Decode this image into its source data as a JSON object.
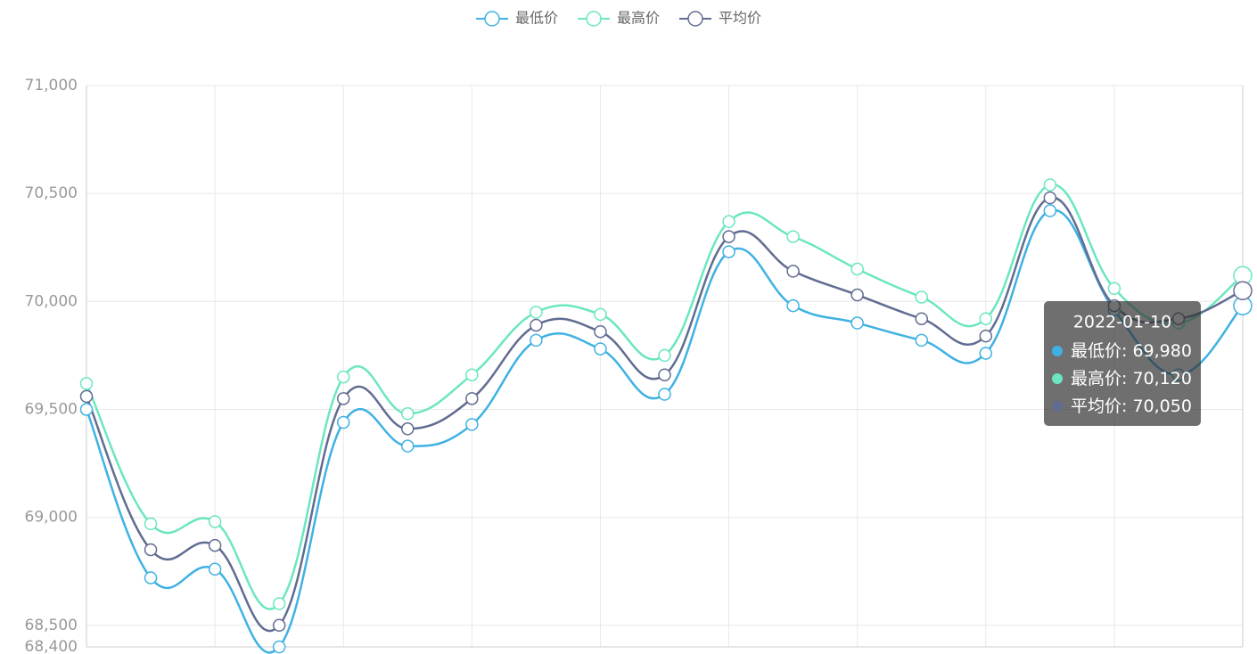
{
  "chart_data": {
    "type": "line",
    "categories": [
      null,
      null,
      null,
      null,
      null,
      null,
      null,
      null,
      null,
      null,
      null,
      null,
      null,
      null,
      null,
      null,
      null,
      null,
      "2022-01-10"
    ],
    "series": [
      {
        "name": "最低价",
        "color": "#3fb1e3",
        "values": [
          69500,
          68720,
          68760,
          68400,
          69440,
          69330,
          69430,
          69820,
          69780,
          69570,
          70230,
          69980,
          69900,
          69820,
          69760,
          70420,
          69960,
          69660,
          69980
        ]
      },
      {
        "name": "最高价",
        "color": "#6be6c1",
        "values": [
          69620,
          68970,
          68980,
          68600,
          69650,
          69480,
          69660,
          69950,
          69940,
          69750,
          70370,
          70300,
          70150,
          70020,
          69920,
          70540,
          70060,
          69900,
          70120
        ]
      },
      {
        "name": "平均价",
        "color": "#626c91",
        "values": [
          69560,
          68850,
          68870,
          68500,
          69550,
          69410,
          69550,
          69890,
          69860,
          69660,
          70300,
          70140,
          70030,
          69920,
          69840,
          70480,
          69980,
          69920,
          70050
        ]
      }
    ],
    "ylim": [
      68400,
      71000
    ],
    "yticks": [
      {
        "value": 68400,
        "label": "68,400"
      },
      {
        "value": 68500,
        "label": "68,500"
      },
      {
        "value": 69000,
        "label": "69,000"
      },
      {
        "value": 69500,
        "label": "69,500"
      },
      {
        "value": 70000,
        "label": "70,000"
      },
      {
        "value": 70500,
        "label": "70,500"
      },
      {
        "value": 71000,
        "label": "71,000"
      }
    ],
    "grid": true,
    "smooth": true,
    "legend": "top",
    "tooltip_labels": [
      "69,980",
      "70,120",
      "70,050"
    ]
  }
}
